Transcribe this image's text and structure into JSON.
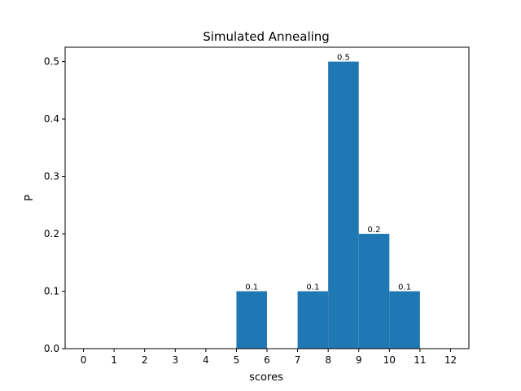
{
  "chart_data": {
    "type": "bar",
    "title": "Simulated Annealing",
    "xlabel": "scores",
    "ylabel": "P",
    "xlim": [
      -0.6,
      12.6
    ],
    "ylim": [
      0,
      0.525
    ],
    "xticks": [
      0,
      1,
      2,
      3,
      4,
      5,
      6,
      7,
      8,
      9,
      10,
      11,
      12
    ],
    "yticks": [
      0.0,
      0.1,
      0.2,
      0.3,
      0.4,
      0.5
    ],
    "ytick_labels": [
      "0.0",
      "0.1",
      "0.2",
      "0.3",
      "0.4",
      "0.5"
    ],
    "bars": [
      {
        "x_start": 5,
        "x_end": 6,
        "value": 0.1,
        "label": "0.1"
      },
      {
        "x_start": 7,
        "x_end": 8,
        "value": 0.1,
        "label": "0.1"
      },
      {
        "x_start": 8,
        "x_end": 9,
        "value": 0.5,
        "label": "0.5"
      },
      {
        "x_start": 9,
        "x_end": 10,
        "value": 0.2,
        "label": "0.2"
      },
      {
        "x_start": 10,
        "x_end": 11,
        "value": 0.1,
        "label": "0.1"
      }
    ],
    "bar_color": "#1f77b4",
    "grid": false,
    "legend": "none"
  }
}
